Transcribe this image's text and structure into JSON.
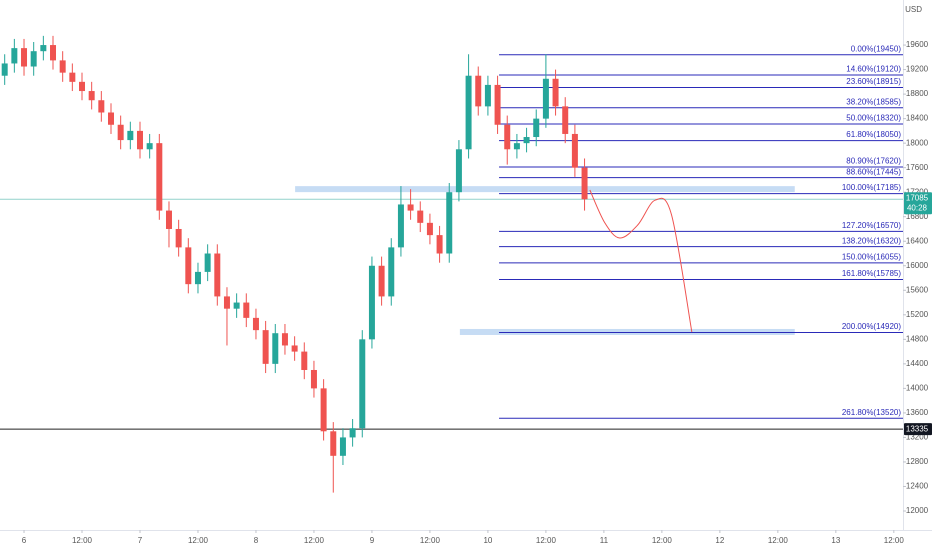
{
  "chart_data": {
    "type": "candlestick",
    "currency": "USD",
    "up_color": "#26a69a",
    "down_color": "#ef5350",
    "fib_color": "#2a2ab8",
    "zone_color": "#bcd6f2",
    "projection_color": "#ef5350",
    "grid": false,
    "xlim": [
      -4.97,
      181.9
    ],
    "ylim": [
      11690,
      20335
    ],
    "yticks": [
      12000,
      12400,
      12800,
      13200,
      13600,
      14000,
      14400,
      14800,
      15200,
      15600,
      16000,
      16400,
      16800,
      17200,
      17600,
      18000,
      18400,
      18800,
      19200,
      19600
    ],
    "xticks": [
      {
        "value": 0,
        "label": "6"
      },
      {
        "value": 12,
        "label": "12:00"
      },
      {
        "value": 24,
        "label": "7"
      },
      {
        "value": 36,
        "label": "12:00"
      },
      {
        "value": 48,
        "label": "8"
      },
      {
        "value": 60,
        "label": "12:00"
      },
      {
        "value": 72,
        "label": "9"
      },
      {
        "value": 84,
        "label": "12:00"
      },
      {
        "value": 96,
        "label": "10"
      },
      {
        "value": 108,
        "label": "12:00"
      },
      {
        "value": 120,
        "label": "11"
      },
      {
        "value": 132,
        "label": "12:00"
      },
      {
        "value": 144,
        "label": "12"
      },
      {
        "value": 156,
        "label": "12:00"
      },
      {
        "value": 168,
        "label": "13"
      },
      {
        "value": 180,
        "label": "12:00"
      }
    ],
    "x": [
      -4,
      -2,
      0,
      2,
      4,
      6,
      8,
      10,
      12,
      14,
      16,
      18,
      20,
      22,
      24,
      26,
      28,
      30,
      32,
      34,
      36,
      38,
      40,
      42,
      44,
      46,
      48,
      50,
      52,
      54,
      56,
      58,
      60,
      62,
      64,
      66,
      68,
      70,
      72,
      74,
      76,
      78,
      80,
      82,
      84,
      86,
      88,
      90,
      92,
      94,
      96,
      98,
      100,
      102,
      104,
      106,
      108,
      110,
      112,
      114,
      116
    ],
    "open": [
      19100,
      19300,
      19550,
      19250,
      19500,
      19600,
      19350,
      19150,
      19000,
      18850,
      18700,
      18500,
      18300,
      18050,
      18200,
      17900,
      18000,
      16900,
      16600,
      16300,
      15700,
      15900,
      16200,
      15500,
      15300,
      15400,
      15150,
      14950,
      14400,
      14900,
      14700,
      14600,
      14300,
      14000,
      13300,
      12900,
      13200,
      13350,
      14800,
      16000,
      15500,
      16300,
      17000,
      16900,
      16700,
      16500,
      16200,
      17200,
      17900,
      19100,
      18600,
      18950,
      18300,
      17900,
      18000,
      18100,
      18400,
      19050,
      18600,
      18150,
      17600
    ],
    "high": [
      19450,
      19700,
      19700,
      19650,
      19750,
      19750,
      19500,
      19300,
      19150,
      19000,
      18850,
      18650,
      18450,
      18350,
      18350,
      18150,
      18150,
      17050,
      16750,
      16450,
      16050,
      16350,
      16350,
      15650,
      15550,
      15550,
      15300,
      15100,
      15050,
      15050,
      14850,
      14750,
      14450,
      14150,
      13450,
      13350,
      13500,
      14950,
      16150,
      16150,
      16450,
      17300,
      17250,
      17050,
      16850,
      16650,
      17350,
      18050,
      19450,
      19250,
      19100,
      19100,
      18450,
      18150,
      18250,
      18550,
      19450,
      19200,
      18750,
      18300,
      17750
    ],
    "low": [
      18950,
      19150,
      19100,
      19100,
      19350,
      19200,
      19000,
      18850,
      18700,
      18550,
      18350,
      18150,
      17900,
      17900,
      17750,
      17750,
      16750,
      16300,
      16150,
      15550,
      15550,
      15750,
      15350,
      14700,
      15150,
      15000,
      14800,
      14250,
      14250,
      14550,
      14450,
      14150,
      13850,
      13150,
      12300,
      12750,
      13050,
      13200,
      14650,
      15350,
      15350,
      16150,
      16750,
      16550,
      16350,
      16050,
      16050,
      17050,
      17750,
      18450,
      18450,
      18150,
      17650,
      17750,
      17850,
      17950,
      18250,
      18450,
      18000,
      17450,
      16900
    ],
    "close": [
      19300,
      19550,
      19250,
      19500,
      19600,
      19350,
      19150,
      19000,
      18850,
      18700,
      18500,
      18300,
      18050,
      18200,
      17900,
      18000,
      16900,
      16600,
      16300,
      15700,
      15900,
      16200,
      15500,
      15300,
      15400,
      15150,
      14950,
      14400,
      14900,
      14700,
      14600,
      14300,
      14000,
      13300,
      12900,
      13200,
      13350,
      14800,
      16000,
      15500,
      16300,
      17000,
      16900,
      16700,
      16500,
      16200,
      17200,
      17900,
      19100,
      18600,
      18950,
      18300,
      17900,
      18000,
      18100,
      18400,
      19050,
      18600,
      18150,
      17600,
      17085
    ],
    "countdown": "40:28",
    "hline": {
      "value": 13335,
      "label": "13335"
    },
    "fib_from": 98.3,
    "fib_levels": [
      {
        "value": 19450,
        "label": "0.00%(19450)"
      },
      {
        "value": 19120,
        "label": "14.60%(19120)"
      },
      {
        "value": 18915,
        "label": "23.60%(18915)"
      },
      {
        "value": 18585,
        "label": "38.20%(18585)"
      },
      {
        "value": 18320,
        "label": "50.00%(18320)"
      },
      {
        "value": 18050,
        "label": "61.80%(18050)"
      },
      {
        "value": 17620,
        "label": "80.90%(17620)"
      },
      {
        "value": 17445,
        "label": "88.60%(17445)"
      },
      {
        "value": 17185,
        "label": "100.00%(17185)"
      },
      {
        "value": 16570,
        "label": "127.20%(16570)"
      },
      {
        "value": 16320,
        "label": "138.20%(16320)"
      },
      {
        "value": 16055,
        "label": "150.00%(16055)"
      },
      {
        "value": 15785,
        "label": "161.80%(15785)"
      },
      {
        "value": 14920,
        "label": "200.00%(14920)"
      },
      {
        "value": 13520,
        "label": "261.80%(13520)"
      }
    ],
    "zones": [
      {
        "level": 17250,
        "from": 56.1,
        "to": 159.5
      },
      {
        "level": 14920,
        "from": 90.2,
        "to": 159.5
      }
    ],
    "projection": {
      "x": [
        117.1,
        120.2,
        123.3,
        127,
        130.6,
        134,
        138.2
      ],
      "y": [
        17236,
        16700,
        16453,
        16665,
        17070,
        16830,
        14920
      ]
    }
  }
}
